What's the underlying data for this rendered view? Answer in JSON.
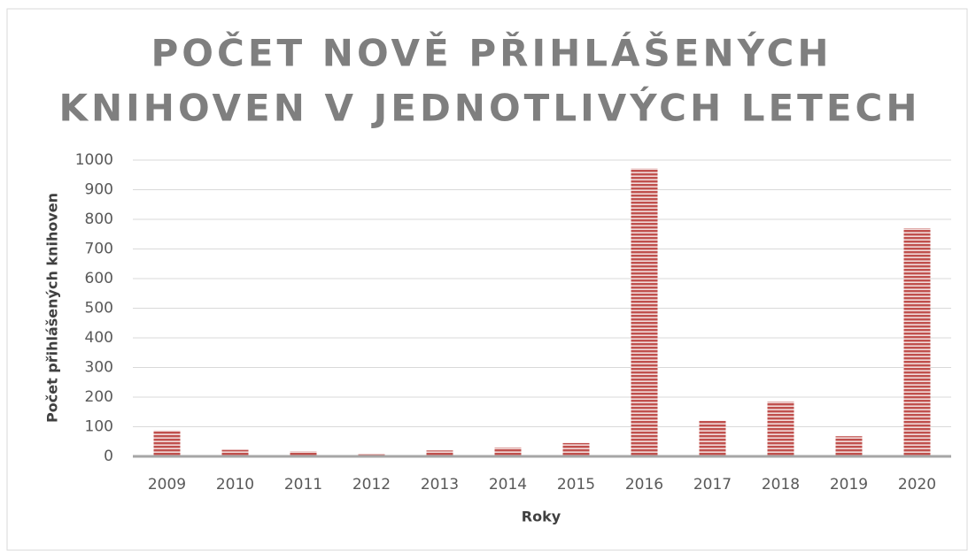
{
  "chart_data": {
    "type": "bar",
    "title": [
      "POČET NOVĚ PŘIHLÁŠENÝCH",
      "KNIHOVEN V JEDNOTLIVÝCH LETECH"
    ],
    "x_label": "Roky",
    "y_label": "Počet přihlášených knihoven",
    "categories": [
      "2009",
      "2010",
      "2011",
      "2012",
      "2013",
      "2014",
      "2015",
      "2016",
      "2017",
      "2018",
      "2019",
      "2020"
    ],
    "values": [
      88,
      22,
      17,
      7,
      20,
      30,
      45,
      972,
      120,
      185,
      68,
      770
    ],
    "color": "#c0504d",
    "ylim": [
      0,
      1000
    ],
    "yticks": [
      0,
      100,
      200,
      300,
      400,
      500,
      600,
      700,
      800,
      900,
      1000
    ],
    "grid": true
  }
}
